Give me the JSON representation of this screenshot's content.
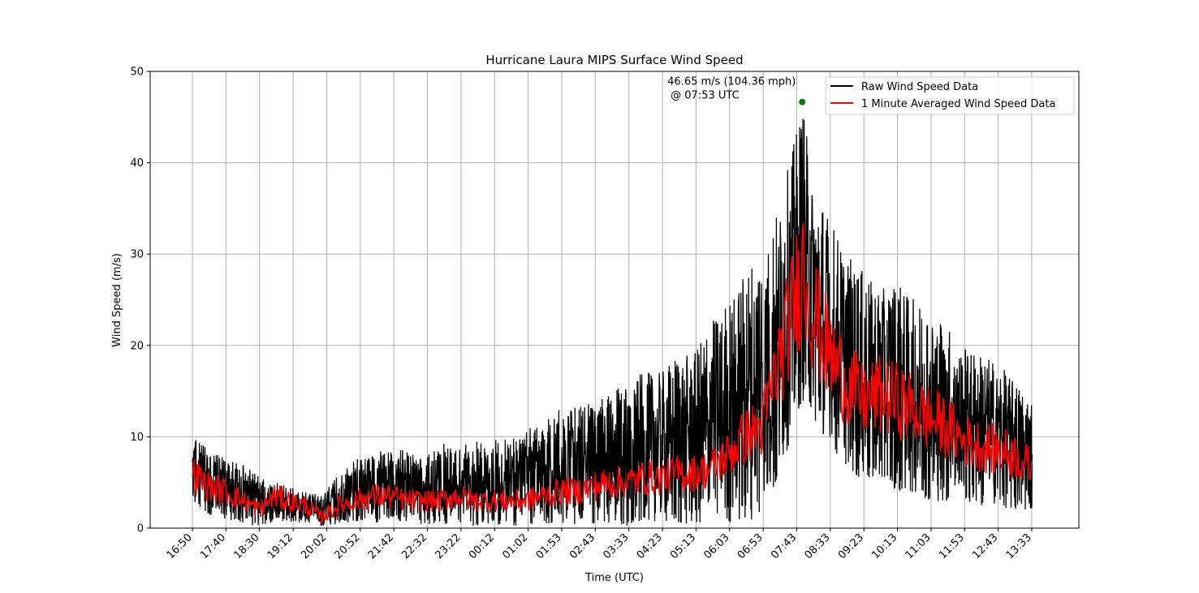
{
  "chart_data": {
    "type": "line",
    "title": "Hurricane Laura MIPS Surface Wind Speed",
    "xlabel": "Time (UTC)",
    "ylabel": "Wind Speed (m/s)",
    "ylim": [
      0,
      50
    ],
    "yticks": [
      0,
      10,
      20,
      30,
      40,
      50
    ],
    "xticks": [
      "16:50",
      "17:40",
      "18:30",
      "19:12",
      "20:02",
      "20:52",
      "21:42",
      "22:32",
      "23:22",
      "00:12",
      "01:02",
      "01:53",
      "02:43",
      "03:33",
      "04:23",
      "05:13",
      "06:03",
      "06:53",
      "07:43",
      "08:33",
      "09:23",
      "10:13",
      "11:03",
      "11:53",
      "12:43",
      "13:33"
    ],
    "grid": true,
    "legend_position": "upper right",
    "colors": {
      "raw": "#000000",
      "avg": "#ff0000",
      "peak": "#008000",
      "grid": "#b0b0b0"
    },
    "series": [
      {
        "name": "Raw Wind Speed Data",
        "color": "#000000",
        "x": [
          "16:50",
          "17:15",
          "17:40",
          "18:05",
          "18:30",
          "18:51",
          "19:12",
          "19:37",
          "20:02",
          "20:27",
          "20:52",
          "21:17",
          "21:42",
          "22:07",
          "22:32",
          "22:57",
          "23:22",
          "23:47",
          "00:12",
          "00:37",
          "01:02",
          "01:27",
          "01:53",
          "02:18",
          "02:43",
          "03:08",
          "03:33",
          "03:58",
          "04:23",
          "04:48",
          "05:13",
          "05:38",
          "06:03",
          "06:28",
          "06:53",
          "07:18",
          "07:43",
          "07:53",
          "08:08",
          "08:33",
          "08:58",
          "09:23",
          "09:48",
          "10:13",
          "10:38",
          "11:03",
          "11:28",
          "11:53",
          "12:18",
          "12:43",
          "13:08",
          "13:33"
        ],
        "min": [
          3,
          1.5,
          1,
          0.5,
          0.2,
          0.8,
          0.8,
          0.5,
          0.3,
          0.5,
          0.8,
          0.5,
          0.8,
          0.5,
          0.5,
          0.5,
          0.5,
          0.3,
          0.5,
          0.3,
          0.3,
          0.5,
          0.5,
          0.5,
          0.5,
          0.5,
          0.3,
          0.8,
          0.8,
          0.5,
          0.5,
          0.8,
          0.5,
          1,
          1,
          5,
          12,
          14,
          12,
          9,
          7,
          5,
          5,
          4,
          4,
          3,
          3,
          3,
          2.5,
          2.5,
          2,
          2
        ],
        "max": [
          10,
          8.5,
          7.5,
          7,
          5.5,
          5,
          4.5,
          4,
          3.5,
          6,
          7.5,
          8.5,
          8.5,
          8.5,
          7.5,
          9.5,
          9,
          9.5,
          9.5,
          10,
          10.5,
          12,
          13,
          13.5,
          14,
          14.5,
          16,
          17,
          17,
          19,
          19,
          23,
          25,
          28,
          31,
          35,
          43,
          46.65,
          38,
          34,
          30,
          28,
          26,
          27,
          25,
          24,
          22,
          20,
          19,
          18,
          16,
          14
        ]
      },
      {
        "name": "1 Minute Averaged Wind Speed Data",
        "color": "#ff0000",
        "x": [
          "16:50",
          "17:15",
          "17:40",
          "18:05",
          "18:30",
          "18:51",
          "19:12",
          "19:37",
          "20:02",
          "20:27",
          "20:52",
          "21:17",
          "21:42",
          "22:07",
          "22:32",
          "22:57",
          "23:22",
          "23:47",
          "00:12",
          "00:37",
          "01:02",
          "01:27",
          "01:53",
          "02:18",
          "02:43",
          "03:08",
          "03:33",
          "03:58",
          "04:23",
          "04:48",
          "05:13",
          "05:38",
          "06:03",
          "06:28",
          "06:53",
          "07:18",
          "07:43",
          "07:53",
          "08:08",
          "08:33",
          "08:58",
          "09:23",
          "09:48",
          "10:13",
          "10:38",
          "11:03",
          "11:28",
          "11:53",
          "12:18",
          "12:43",
          "13:08",
          "13:33"
        ],
        "y": [
          6,
          4.5,
          4,
          3,
          2,
          3.5,
          3,
          2.5,
          1.2,
          2.5,
          3,
          3.5,
          3.5,
          3,
          3,
          3,
          3.5,
          3,
          3,
          3,
          3,
          3.5,
          4,
          4,
          4.5,
          5,
          5,
          5.5,
          5.5,
          6,
          6,
          6.5,
          8,
          10,
          11,
          18,
          25,
          29,
          24,
          19,
          16,
          14,
          14.5,
          14,
          13,
          12,
          11,
          9.5,
          9,
          8.5,
          8,
          6.5
        ]
      }
    ],
    "annotation": {
      "line1": "46.65 m/s (104.36 mph)",
      "line2": "@ 07:53 UTC",
      "x": "07:53",
      "y": 46.65
    }
  }
}
